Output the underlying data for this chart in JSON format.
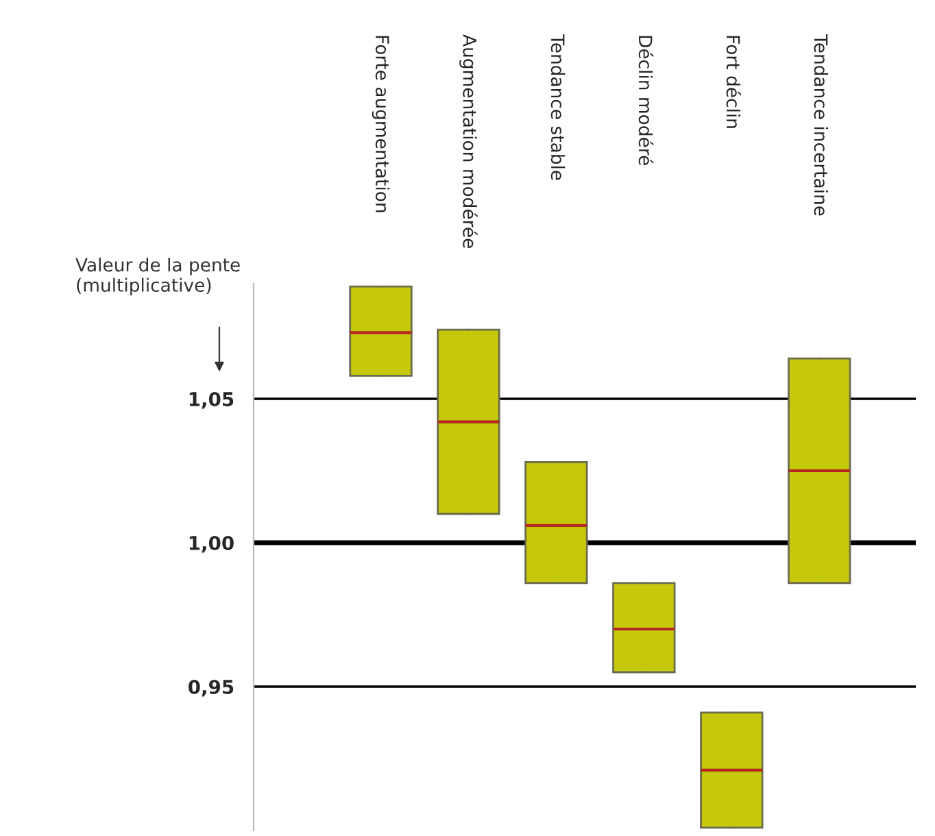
{
  "chart_data": {
    "type": "box",
    "ylabel": "Valeur de la pente\n(multiplicative)",
    "categories": [
      "Forte augmentation",
      "Augmentation modérée",
      "Tendance stable",
      "Déclin modéré",
      "Fort déclin",
      "Tendance incertaine"
    ],
    "boxes": [
      {
        "low": 1.058,
        "q1": 1.058,
        "median": 1.073,
        "q3": 1.089,
        "high": 1.089
      },
      {
        "low": 1.01,
        "q1": 1.01,
        "median": 1.042,
        "q3": 1.074,
        "high": 1.074
      },
      {
        "low": 0.986,
        "q1": 0.986,
        "median": 1.006,
        "q3": 1.028,
        "high": 1.028
      },
      {
        "low": 0.955,
        "q1": 0.955,
        "median": 0.97,
        "q3": 0.986,
        "high": 0.986
      },
      {
        "low": 0.901,
        "q1": 0.901,
        "median": 0.921,
        "q3": 0.941,
        "high": 0.941
      },
      {
        "low": 0.986,
        "q1": 0.986,
        "median": 1.025,
        "q3": 1.064,
        "high": 1.064
      }
    ],
    "color": "#c5c90a",
    "ylim": [
      0.9,
      1.09
    ],
    "yticks": [
      {
        "value": 0.95,
        "label": "0,95"
      },
      {
        "value": 1.0,
        "label": "1,00"
      },
      {
        "value": 1.05,
        "label": "1,05"
      }
    ],
    "grid": "y",
    "ref_lines": [
      {
        "axis": "y",
        "value": 1.0,
        "color": "#000000"
      }
    ]
  }
}
